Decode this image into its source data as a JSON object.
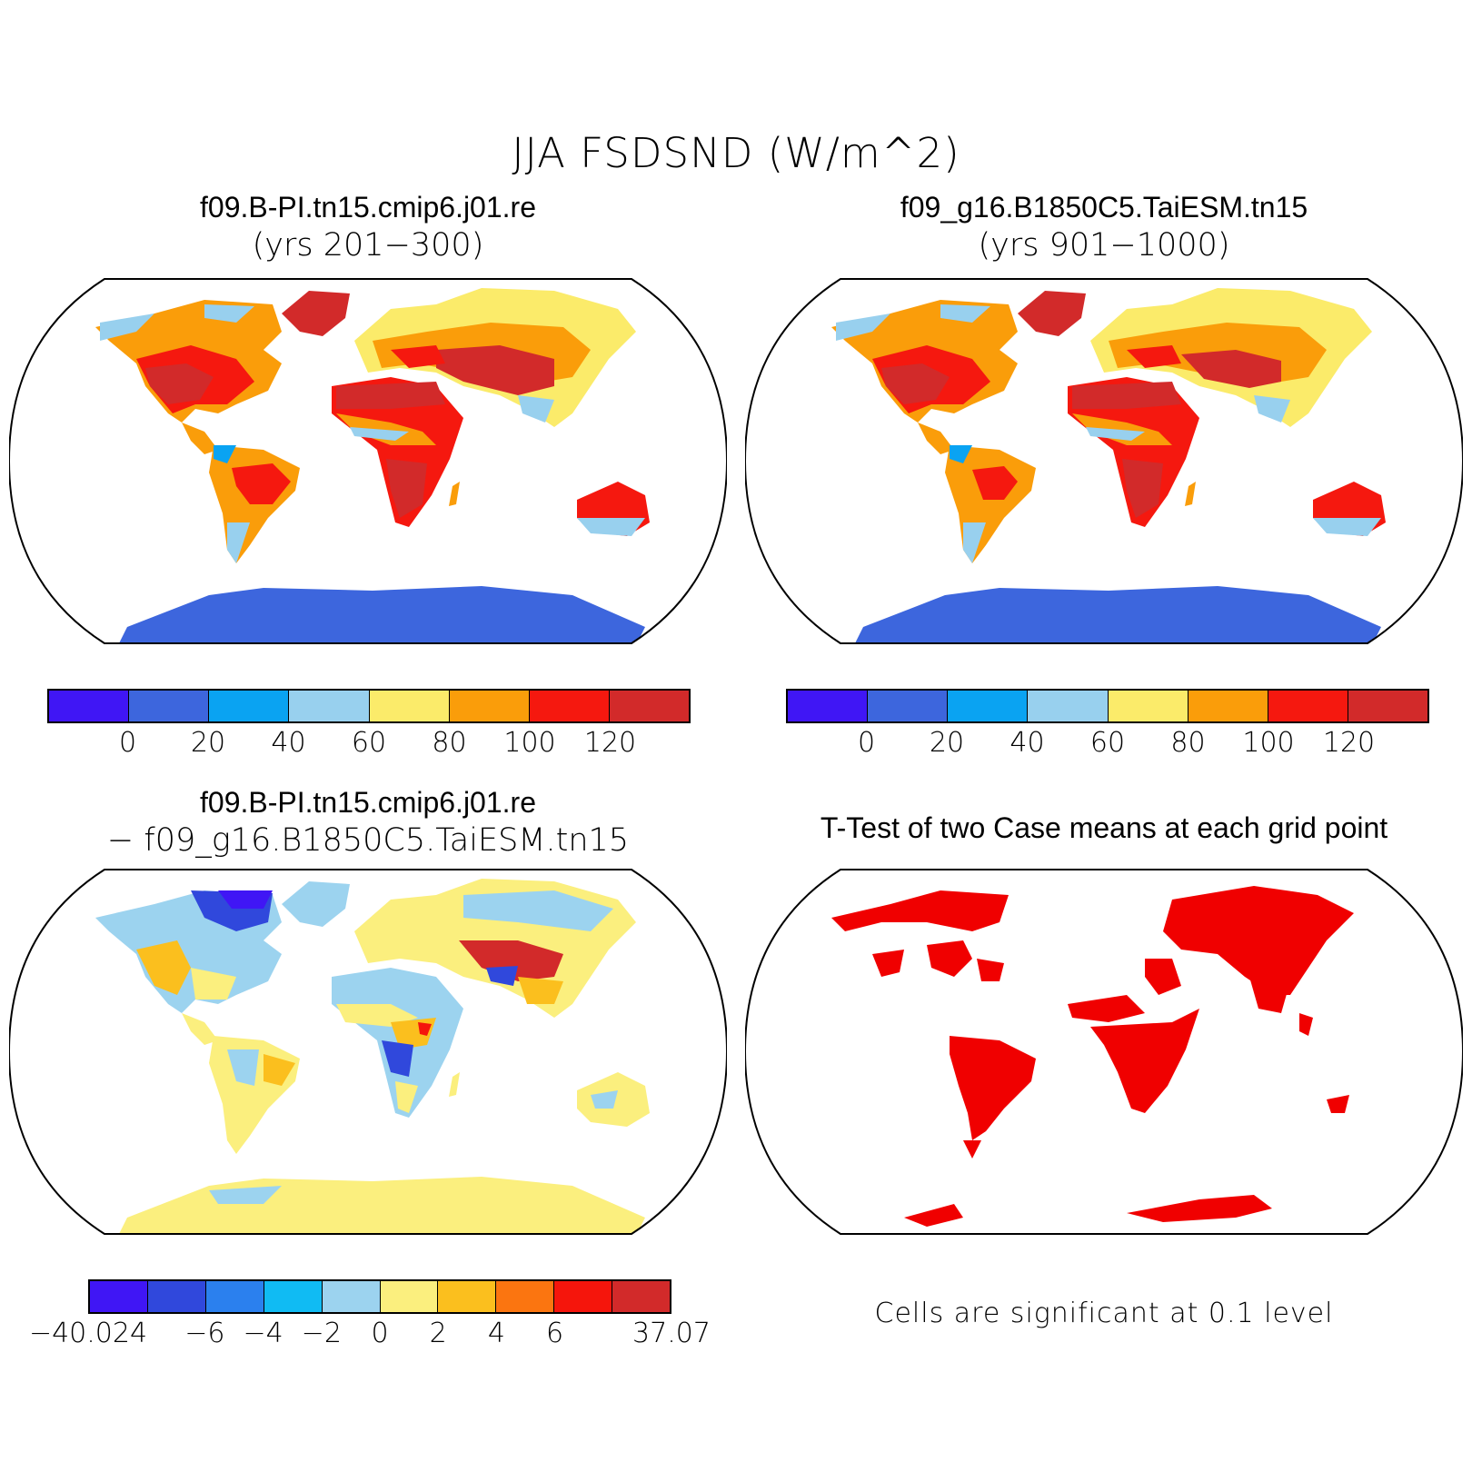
{
  "title": "JJA FSDSND (W/m^2)",
  "panels": {
    "top_left": {
      "title": "f09.B-PI.tn15.cmip6.j01.re",
      "subtitle": "(yrs 201−300)"
    },
    "top_right": {
      "title": "f09_g16.B1850C5.TaiESM.tn15",
      "subtitle": "(yrs 901−1000)"
    },
    "bottom_left": {
      "title": "f09.B-PI.tn15.cmip6.j01.re",
      "subtitle": "− f09_g16.B1850C5.TaiESM.tn15"
    },
    "bottom_right": {
      "title": "T-Test of two Case means at each grid point",
      "note": "Cells are significant at 0.1 level"
    }
  },
  "colorbar_abs": {
    "colors": [
      "#4016f5",
      "#3d66dd",
      "#0aa3f2",
      "#98d0ee",
      "#fbeb6a",
      "#fa9d0a",
      "#f5180f",
      "#d22a2a"
    ],
    "labels": [
      "0",
      "20",
      "40",
      "60",
      "80",
      "100",
      "120"
    ]
  },
  "colorbar_diff": {
    "colors": [
      "#4016f5",
      "#3048dc",
      "#2b80ee",
      "#10bbf3",
      "#9cd3ef",
      "#fbef7e",
      "#fbbf1e",
      "#fb7510",
      "#f5150c",
      "#d22a2a"
    ],
    "labels": [
      "−40.024",
      "−6",
      "−4",
      "−2",
      "0",
      "2",
      "4",
      "6",
      "37.07"
    ]
  },
  "significance_color": "#f00000"
}
